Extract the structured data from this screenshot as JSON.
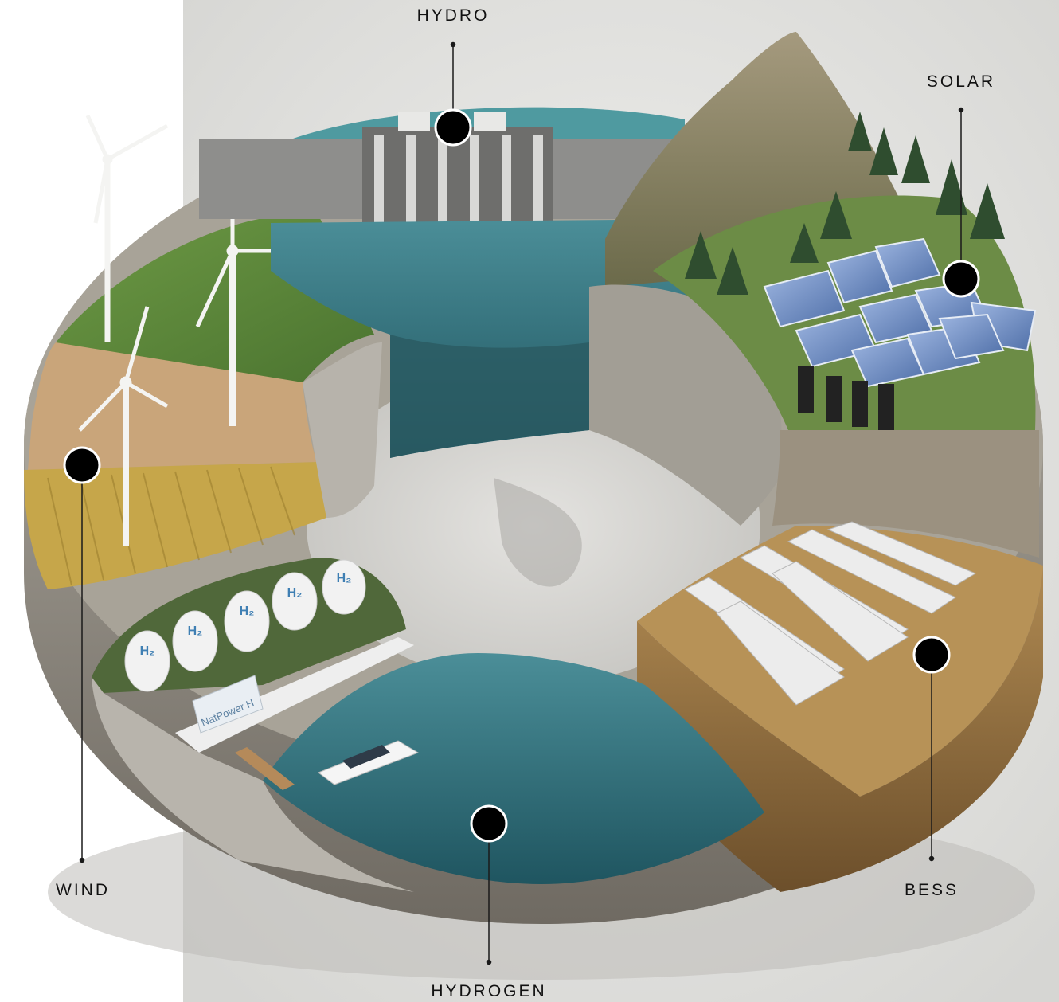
{
  "labels": {
    "hydro": "HYDRO",
    "solar": "SOLAR",
    "wind": "WIND",
    "bess": "BESS",
    "hydrogen": "HYDROGEN",
    "container_text": "NatPower H",
    "tank_text": "H₂"
  },
  "colors": {
    "background_left": "#ffffff",
    "background_main": "#dcdcda",
    "marker_fill": "#000000",
    "marker_ring": "#ffffff",
    "label_text": "#111111",
    "leader_line": "#1a1a1a",
    "water": "#2c6f7c",
    "grass": "#5f8a3a",
    "soil": "#9b7a4b",
    "rock": "#8f8a82",
    "solar_panel": "#6f8fc4",
    "battery": "#e6e6e6"
  },
  "icons": {
    "wind_turbine": "wind-turbine-icon",
    "solar_panel": "solar-panel-icon",
    "dam": "dam-icon",
    "battery": "battery-container-icon",
    "hydrogen_tank": "hydrogen-tank-icon",
    "boat": "boat-icon",
    "marker": "marker-dot-icon"
  }
}
